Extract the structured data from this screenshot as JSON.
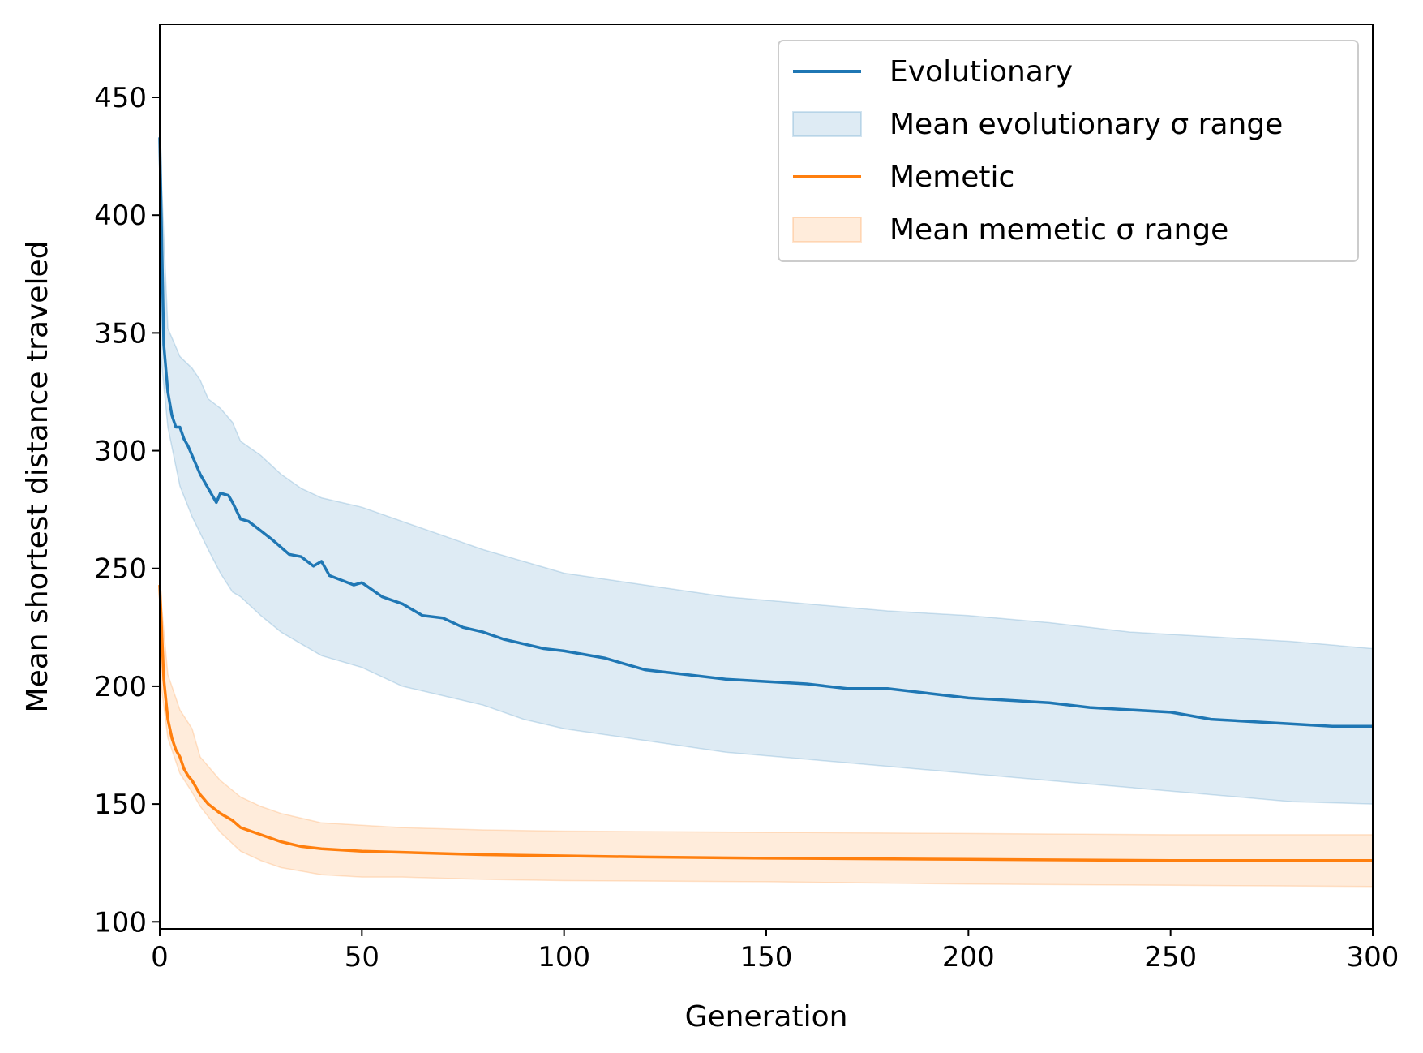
{
  "chart_data": {
    "type": "line",
    "title": "",
    "xlabel": "Generation",
    "ylabel": "Mean shortest distance traveled",
    "xlim": [
      0,
      300
    ],
    "ylim": [
      97,
      481
    ],
    "xticks": [
      0,
      50,
      100,
      150,
      200,
      250,
      300
    ],
    "yticks": [
      100,
      150,
      200,
      250,
      300,
      350,
      400,
      450
    ],
    "grid": false,
    "legend_position": "top-right",
    "series": [
      {
        "name": "Evolutionary",
        "kind": "line",
        "color": "#1f77b4",
        "x": [
          0,
          1,
          2,
          3,
          4,
          5,
          6,
          7,
          8,
          10,
          12,
          14,
          15,
          17,
          18,
          20,
          22,
          25,
          28,
          30,
          32,
          35,
          38,
          40,
          42,
          45,
          48,
          50,
          55,
          60,
          65,
          70,
          75,
          80,
          85,
          90,
          95,
          100,
          110,
          120,
          130,
          140,
          150,
          160,
          170,
          180,
          190,
          200,
          210,
          220,
          230,
          240,
          250,
          260,
          270,
          280,
          290,
          300
        ],
        "y": [
          433,
          345,
          325,
          315,
          310,
          310,
          305,
          302,
          298,
          290,
          284,
          278,
          282,
          281,
          278,
          271,
          270,
          266,
          262,
          259,
          256,
          255,
          251,
          253,
          247,
          245,
          243,
          244,
          238,
          235,
          230,
          229,
          225,
          223,
          220,
          218,
          216,
          215,
          212,
          207,
          205,
          203,
          202,
          201,
          199,
          199,
          197,
          195,
          194,
          193,
          191,
          190,
          189,
          186,
          185,
          184,
          183,
          183
        ]
      },
      {
        "name": "Mean evolutionary σ range",
        "kind": "band",
        "color": "#1f77b4",
        "x": [
          0,
          2,
          5,
          8,
          10,
          12,
          15,
          18,
          20,
          25,
          30,
          35,
          40,
          50,
          60,
          70,
          80,
          90,
          100,
          120,
          140,
          160,
          180,
          200,
          220,
          240,
          260,
          280,
          300
        ],
        "lower": [
          345,
          310,
          285,
          272,
          265,
          258,
          248,
          240,
          238,
          230,
          223,
          218,
          213,
          208,
          200,
          196,
          192,
          186,
          182,
          177,
          172,
          169,
          166,
          163,
          160,
          157,
          154,
          151,
          150
        ],
        "upper": [
          432,
          352,
          340,
          335,
          330,
          322,
          318,
          312,
          304,
          298,
          290,
          284,
          280,
          276,
          270,
          264,
          258,
          253,
          248,
          243,
          238,
          235,
          232,
          230,
          227,
          223,
          221,
          219,
          216
        ]
      },
      {
        "name": "Memetic",
        "kind": "line",
        "color": "#ff7f0e",
        "x": [
          0,
          1,
          2,
          3,
          4,
          5,
          6,
          7,
          8,
          10,
          12,
          15,
          18,
          20,
          25,
          30,
          35,
          40,
          50,
          60,
          70,
          80,
          100,
          120,
          150,
          200,
          250,
          300
        ],
        "y": [
          243,
          203,
          186,
          178,
          173,
          170,
          165,
          162,
          160,
          154,
          150,
          146,
          143,
          140,
          137,
          134,
          132,
          131,
          130,
          129.5,
          129,
          128.5,
          128,
          127.5,
          127,
          126.5,
          126,
          126
        ]
      },
      {
        "name": "Mean memetic σ range",
        "kind": "band",
        "color": "#ff7f0e",
        "x": [
          0,
          2,
          5,
          8,
          10,
          15,
          20,
          25,
          30,
          40,
          50,
          60,
          80,
          100,
          150,
          200,
          250,
          300
        ],
        "lower": [
          205,
          178,
          163,
          155,
          149,
          138,
          130,
          126,
          123,
          120,
          119,
          119,
          118,
          117.5,
          117,
          116,
          115.5,
          115
        ],
        "upper": [
          243,
          205,
          190,
          182,
          170,
          160,
          153,
          149,
          146,
          142,
          141,
          140,
          139,
          138.5,
          138,
          137.5,
          137,
          137
        ]
      }
    ]
  }
}
